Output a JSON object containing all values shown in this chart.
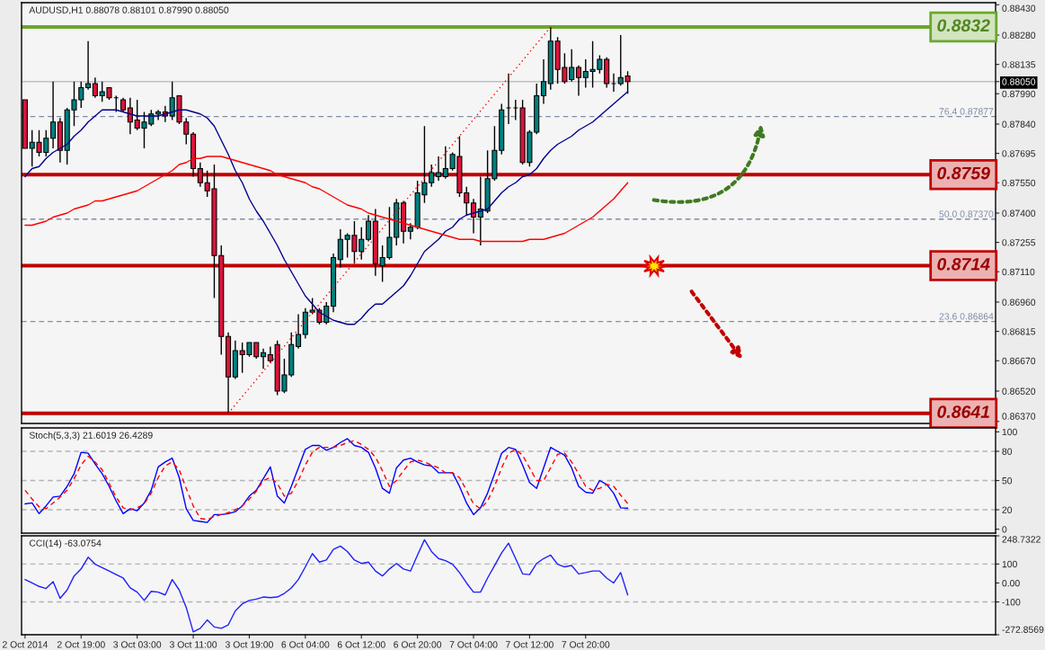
{
  "chart_data": [
    {
      "type": "candlestick",
      "title": "AUDUSD,H1 0.88078 0.88101 0.87990 0.88050",
      "categories": [
        null,
        null,
        null,
        null,
        null,
        null,
        null,
        null,
        null,
        null,
        null,
        null,
        null,
        null,
        null,
        null,
        null,
        null,
        null,
        null,
        null,
        null,
        null,
        null,
        null,
        null,
        null,
        null,
        null,
        null,
        null,
        null,
        null,
        null,
        null,
        null,
        null,
        null,
        null,
        null,
        null,
        null,
        null,
        null,
        null,
        null,
        null,
        null,
        null,
        null,
        null,
        null,
        null,
        null,
        null,
        null,
        null,
        null,
        null,
        null,
        null,
        null,
        null,
        null,
        null,
        null,
        null,
        null,
        null,
        null,
        null,
        null,
        null,
        null,
        null,
        null,
        null,
        null,
        null,
        null,
        null,
        null,
        null,
        null,
        null,
        null,
        null,
        null,
        null,
        null,
        null,
        null,
        null,
        null,
        null,
        null,
        null,
        null,
        null,
        null,
        null,
        null,
        null,
        null,
        null,
        null,
        null,
        null,
        null,
        null,
        null,
        null,
        null,
        null,
        null,
        null,
        null,
        null,
        null,
        null,
        null,
        null,
        null,
        null,
        null,
        null,
        null,
        null,
        null,
        null,
        null,
        null,
        null,
        null,
        null,
        null,
        null,
        null,
        null
      ],
      "ohlc": [
        [
          0.8796,
          0.8796,
          0.8772,
          0.8772
        ],
        [
          0.8772,
          0.8781,
          0.8763,
          0.8775
        ],
        [
          0.8775,
          0.8781,
          0.8768,
          0.877
        ],
        [
          0.877,
          0.8781,
          0.8768,
          0.8777
        ],
        [
          0.8777,
          0.8805,
          0.8772,
          0.8785
        ],
        [
          0.8785,
          0.8787,
          0.8765,
          0.8771
        ],
        [
          0.8771,
          0.8792,
          0.8764,
          0.8791
        ],
        [
          0.8791,
          0.8805,
          0.8783,
          0.8796
        ],
        [
          0.8796,
          0.8805,
          0.8792,
          0.8802
        ],
        [
          0.8802,
          0.8825,
          0.8801,
          0.8804
        ],
        [
          0.8804,
          0.8807,
          0.8797,
          0.8798
        ],
        [
          0.8798,
          0.8805,
          0.8795,
          0.88
        ],
        [
          0.8802,
          0.8802,
          0.8796,
          0.8797
        ],
        [
          0.8797,
          0.8798,
          0.879,
          0.8797
        ],
        [
          0.8796,
          0.8797,
          0.879,
          0.8791
        ],
        [
          0.8792,
          0.8797,
          0.8779,
          0.8785
        ],
        [
          0.8786,
          0.8796,
          0.8781,
          0.8782
        ],
        [
          0.8782,
          0.879,
          0.8772,
          0.8785
        ],
        [
          0.8784,
          0.8791,
          0.8783,
          0.8789
        ],
        [
          0.8789,
          0.8791,
          0.8786,
          0.879
        ],
        [
          0.879,
          0.8793,
          0.8785,
          0.8788
        ],
        [
          0.8788,
          0.8805,
          0.8786,
          0.8797
        ],
        [
          0.8798,
          0.8798,
          0.8784,
          0.8785
        ],
        [
          0.8785,
          0.8787,
          0.8774,
          0.8779
        ],
        [
          0.8779,
          0.878,
          0.8758,
          0.8762
        ],
        [
          0.8762,
          0.8765,
          0.8753,
          0.8755
        ],
        [
          0.8755,
          0.8761,
          0.8748,
          0.8751
        ],
        [
          0.8752,
          0.8764,
          0.8698,
          0.8719
        ],
        [
          0.8719,
          0.8724,
          0.867,
          0.8679
        ],
        [
          0.8679,
          0.8681,
          0.8641,
          0.8659
        ],
        [
          0.8659,
          0.8677,
          0.8658,
          0.8672
        ],
        [
          0.8672,
          0.8676,
          0.8661,
          0.867
        ],
        [
          0.867,
          0.8676,
          0.8669,
          0.8676
        ],
        [
          0.8676,
          0.8676,
          0.8668,
          0.8669
        ],
        [
          0.8669,
          0.8673,
          0.8663,
          0.8671
        ],
        [
          0.867,
          0.8674,
          0.8666,
          0.8667
        ],
        [
          0.8675,
          0.8677,
          0.865,
          0.8652
        ],
        [
          0.8652,
          0.8668,
          0.8651,
          0.866
        ],
        [
          0.866,
          0.8681,
          0.8659,
          0.8675
        ],
        [
          0.8674,
          0.869,
          0.8673,
          0.868
        ],
        [
          0.868,
          0.8693,
          0.8678,
          0.8691
        ],
        [
          0.8691,
          0.8698,
          0.869,
          0.8692
        ],
        [
          0.8692,
          0.8693,
          0.8685,
          0.8686
        ],
        [
          0.8686,
          0.8696,
          0.8685,
          0.8694
        ],
        [
          0.8694,
          0.872,
          0.8691,
          0.8718
        ],
        [
          0.8717,
          0.8732,
          0.8713,
          0.8727
        ],
        [
          0.8727,
          0.873,
          0.8718,
          0.8729
        ],
        [
          0.8729,
          0.8736,
          0.8715,
          0.8721
        ],
        [
          0.8721,
          0.8733,
          0.8717,
          0.8727
        ],
        [
          0.8727,
          0.8739,
          0.8726,
          0.8736
        ],
        [
          0.8736,
          0.8742,
          0.8709,
          0.8715
        ],
        [
          0.8714,
          0.8724,
          0.8706,
          0.8718
        ],
        [
          0.8718,
          0.8743,
          0.8717,
          0.8728
        ],
        [
          0.8728,
          0.8747,
          0.8724,
          0.8745
        ],
        [
          0.8745,
          0.8746,
          0.8725,
          0.8731
        ],
        [
          0.8731,
          0.8735,
          0.8727,
          0.8733
        ],
        [
          0.8733,
          0.8756,
          0.8732,
          0.875
        ],
        [
          0.8749,
          0.8783,
          0.8745,
          0.8755
        ],
        [
          0.8755,
          0.8764,
          0.8753,
          0.876
        ],
        [
          0.8758,
          0.8768,
          0.8756,
          0.876
        ],
        [
          0.8758,
          0.8773,
          0.8757,
          0.8762
        ],
        [
          0.8762,
          0.877,
          0.8761,
          0.8769
        ],
        [
          0.8768,
          0.8778,
          0.8748,
          0.875
        ],
        [
          0.875,
          0.8753,
          0.8739,
          0.8745
        ],
        [
          0.8745,
          0.8747,
          0.873,
          0.8738
        ],
        [
          0.8738,
          0.8758,
          0.8724,
          0.8742
        ],
        [
          0.8741,
          0.8771,
          0.874,
          0.8757
        ],
        [
          0.8757,
          0.8783,
          0.8756,
          0.8771
        ],
        [
          0.8771,
          0.8794,
          0.8769,
          0.8791
        ],
        [
          0.8792,
          0.8809,
          0.8784,
          0.8792
        ],
        [
          0.8792,
          0.8796,
          0.8786,
          0.8792
        ],
        [
          0.8792,
          0.8796,
          0.8764,
          0.8765
        ],
        [
          0.8765,
          0.8781,
          0.8763,
          0.878
        ],
        [
          0.878,
          0.8804,
          0.8779,
          0.8798
        ],
        [
          0.8798,
          0.8816,
          0.8794,
          0.8805
        ],
        [
          0.8804,
          0.8832,
          0.8801,
          0.8825
        ],
        [
          0.8825,
          0.8827,
          0.8804,
          0.8811
        ],
        [
          0.8812,
          0.8819,
          0.8804,
          0.8805
        ],
        [
          0.8806,
          0.8821,
          0.8805,
          0.8812
        ],
        [
          0.8812,
          0.8813,
          0.8798,
          0.8807
        ],
        [
          0.8807,
          0.8816,
          0.8802,
          0.881
        ],
        [
          0.881,
          0.8825,
          0.8802,
          0.8811
        ],
        [
          0.8811,
          0.8818,
          0.8809,
          0.8816
        ],
        [
          0.8816,
          0.8817,
          0.8802,
          0.8804
        ],
        [
          0.8804,
          0.8809,
          0.88,
          0.8804
        ],
        [
          0.8804,
          0.8828,
          0.8803,
          0.8807
        ],
        [
          0.88078,
          0.88101,
          0.8799,
          0.8805
        ],
        null,
        null,
        null,
        null,
        null,
        null,
        null,
        null,
        null,
        null,
        null,
        null,
        null,
        null,
        null,
        null,
        null,
        null,
        null,
        null,
        null,
        null,
        null,
        null,
        null,
        null,
        null,
        null,
        null,
        null,
        null,
        null,
        null,
        null,
        null,
        null,
        null,
        null,
        null,
        null,
        null,
        null,
        null,
        null,
        null,
        null,
        null,
        null,
        null,
        null,
        null,
        null
      ],
      "colors": [
        "#dc143c",
        "#008080",
        "#dc143c",
        "#008080",
        "#008080",
        "#dc143c",
        "#008080",
        "#008080",
        "#008080",
        "#008080",
        "#dc143c",
        "#008080",
        "#dc143c",
        "#000000",
        "#dc143c",
        "#dc143c",
        "#dc143c",
        "#008080",
        "#008080",
        "#008080",
        "#dc143c",
        "#008080",
        "#dc143c",
        "#dc143c",
        "#dc143c",
        "#dc143c",
        "#dc143c",
        "#dc143c",
        "#dc143c",
        "#dc143c",
        "#008080",
        "#dc143c",
        "#008080",
        "#dc143c",
        "#008080",
        "#dc143c",
        "#dc143c",
        "#008080",
        "#008080",
        "#008080",
        "#008080",
        "#008080",
        "#dc143c",
        "#008080",
        "#008080",
        "#008080",
        "#008080",
        "#dc143c",
        "#008080",
        "#008080",
        "#dc143c",
        "#008080",
        "#008080",
        "#008080",
        "#dc143c",
        "#008080",
        "#008080",
        "#008080",
        "#008080",
        "#008080",
        "#008080",
        "#008080",
        "#dc143c",
        "#dc143c",
        "#dc143c",
        "#008080",
        "#008080",
        "#008080",
        "#008080",
        "#000000",
        "#000000",
        "#dc143c",
        "#008080",
        "#008080",
        "#008080",
        "#008080",
        "#dc143c",
        "#dc143c",
        "#008080",
        "#dc143c",
        "#008080",
        "#008080",
        "#008080",
        "#dc143c",
        "#000000",
        "#008080",
        "#dc143c",
        null,
        null,
        null,
        null,
        null,
        null,
        null,
        null,
        null,
        null,
        null,
        null,
        null,
        null,
        null,
        null,
        null,
        null,
        null,
        null,
        null,
        null,
        null,
        null,
        null,
        null,
        null,
        null,
        null,
        null,
        null,
        null,
        null,
        null,
        null,
        null,
        null,
        null,
        null,
        null,
        null,
        null,
        null,
        null,
        null,
        null,
        null,
        null,
        null,
        null,
        null,
        null
      ],
      "series": [
        {
          "type": "line",
          "color": "#00008b",
          "values": [
            0.8758,
            0.8762,
            0.8763,
            0.8767,
            0.877,
            0.8772,
            0.8774,
            0.8778,
            0.8781,
            0.8785,
            0.8788,
            0.8791,
            0.8791,
            0.8791,
            0.879,
            0.8789,
            0.8788,
            0.8788,
            0.8788,
            0.8788,
            0.8789,
            0.879,
            0.8791,
            0.8791,
            0.879,
            0.8789,
            0.8787,
            0.8783,
            0.8776,
            0.8769,
            0.8761,
            0.8755,
            0.8747,
            0.8741,
            0.8736,
            0.873,
            0.8724,
            0.8717,
            0.8711,
            0.8705,
            0.8699,
            0.8695,
            0.8691,
            0.8689,
            0.8687,
            0.8686,
            0.8685,
            0.8685,
            0.8688,
            0.8692,
            0.8695,
            0.8695,
            0.8698,
            0.8701,
            0.8704,
            0.8709,
            0.8715,
            0.8721,
            0.8724,
            0.8727,
            0.8731,
            0.8733,
            0.8737,
            0.8739,
            0.874,
            0.8741,
            0.8742,
            0.8746,
            0.875,
            0.8753,
            0.8755,
            0.8758,
            0.8759,
            0.8762,
            0.8767,
            0.8771,
            0.8774,
            0.8776,
            0.8778,
            0.8781,
            0.8783,
            0.8785,
            0.8788,
            0.8791,
            0.8794,
            0.8797,
            0.88,
            null,
            null,
            null,
            null,
            null,
            null,
            null,
            null,
            null,
            null,
            null,
            null,
            null,
            null,
            null,
            null,
            null,
            null,
            null,
            null,
            null,
            null,
            null,
            null,
            null,
            null,
            null,
            null,
            null,
            null,
            null,
            null,
            null,
            null,
            null,
            null,
            null,
            null,
            null,
            null,
            null,
            null,
            null,
            null,
            null,
            null,
            null,
            null,
            null,
            null,
            null,
            null
          ]
        },
        {
          "type": "line",
          "color": "#ff0000",
          "values": [
            0.8734,
            0.8734,
            0.8735,
            0.8736,
            0.8738,
            0.8739,
            0.874,
            0.8742,
            0.8743,
            0.8744,
            0.8746,
            0.8746,
            0.8747,
            0.8748,
            0.8749,
            0.875,
            0.8751,
            0.8753,
            0.8755,
            0.8757,
            0.8759,
            0.8761,
            0.8764,
            0.8765,
            0.8767,
            0.8767,
            0.8768,
            0.8768,
            0.8768,
            0.8767,
            0.8766,
            0.8765,
            0.8764,
            0.8763,
            0.8762,
            0.8761,
            0.8759,
            0.8758,
            0.8757,
            0.8756,
            0.8755,
            0.8753,
            0.8752,
            0.875,
            0.8748,
            0.8746,
            0.8744,
            0.8743,
            0.8742,
            0.874,
            0.8739,
            0.8738,
            0.8737,
            0.8736,
            0.8735,
            0.8734,
            0.8733,
            0.8732,
            0.8731,
            0.873,
            0.8729,
            0.8728,
            0.8727,
            0.8727,
            0.8727,
            0.8726,
            0.8726,
            0.8726,
            0.8726,
            0.8726,
            0.8726,
            0.8726,
            0.8727,
            0.8727,
            0.8727,
            0.8728,
            0.8729,
            0.873,
            0.8732,
            0.8734,
            0.8736,
            0.8738,
            0.8741,
            0.8744,
            0.8747,
            0.8751,
            0.8755,
            null,
            null,
            null,
            null,
            null,
            null,
            null,
            null,
            null,
            null,
            null,
            null,
            null,
            null,
            null,
            null,
            null,
            null,
            null,
            null,
            null,
            null,
            null,
            null,
            null,
            null,
            null,
            null,
            null,
            null,
            null,
            null,
            null,
            null,
            null,
            null,
            null,
            null,
            null,
            null,
            null,
            null,
            null,
            null,
            null,
            null,
            null,
            null,
            null,
            null,
            null,
            null
          ]
        },
        {
          "type": "line",
          "color": "#ff0000",
          "line_style": "dotted",
          "values": [
            null,
            null,
            null,
            null,
            null,
            null,
            null,
            null,
            null,
            null,
            null,
            null,
            null,
            null,
            null,
            null,
            null,
            null,
            null,
            null,
            null,
            null,
            null,
            null,
            null,
            null,
            null,
            null,
            null,
            0.8641,
            null,
            null,
            null,
            null,
            null,
            null,
            null,
            null,
            null,
            null,
            null,
            null,
            null,
            null,
            null,
            null,
            null,
            null,
            null,
            null,
            null,
            null,
            null,
            null,
            null,
            null,
            null,
            null,
            null,
            null,
            null,
            null,
            null,
            null,
            null,
            null,
            null,
            null,
            null,
            null,
            null,
            null,
            null,
            null,
            null,
            0.8832,
            null,
            null,
            null,
            null,
            null,
            null,
            null,
            null,
            null,
            null,
            null,
            null,
            null,
            null,
            null,
            null,
            null,
            null,
            null,
            null,
            null,
            null,
            null,
            null,
            null,
            null,
            null,
            null,
            null,
            null,
            null,
            null,
            null,
            null,
            null,
            null,
            null,
            null,
            null,
            null,
            null,
            null,
            null,
            null,
            null,
            null,
            null,
            null,
            null,
            null,
            null,
            null,
            null,
            null,
            null,
            null,
            null,
            null,
            null,
            null,
            null,
            null,
            null
          ]
        }
      ],
      "ref_lines": [
        {
          "axis": "y",
          "value": 0.8805,
          "color": "#c0c0c0",
          "line_style": "solid"
        },
        {
          "axis": "y",
          "value": 0.87877,
          "label": "76.4 0.87877",
          "color": "#7f8ea6",
          "line_style": "dashed"
        },
        {
          "axis": "y",
          "value": 0.8737,
          "label": "50.0 0.87370",
          "color": "#7f8ea6",
          "line_style": "dashed"
        },
        {
          "axis": "y",
          "value": 0.86864,
          "label": "23.6 0.86864",
          "color": "#7f8ea6",
          "line_style": "dashed"
        },
        {
          "axis": "y",
          "value": 0.8832,
          "label": "0.8832",
          "color": "#6aa82c",
          "line_style": "solid"
        },
        {
          "axis": "y",
          "value": 0.8759,
          "label": "0.8759",
          "color": "#c00000",
          "line_style": "solid"
        },
        {
          "axis": "y",
          "value": 0.8714,
          "label": "0.8714",
          "color": "#c00000",
          "line_style": "solid"
        },
        {
          "axis": "y",
          "value": 0.8641,
          "label": "0.8641",
          "color": "#c00000",
          "line_style": "solid"
        }
      ],
      "ylim": [
        0.8636,
        0.8844
      ],
      "yticks": [
        {
          "value": 0.8843,
          "label": "0.88430"
        },
        {
          "value": 0.8828,
          "label": "0.88280"
        },
        {
          "value": 0.88135,
          "label": "0.88135"
        },
        {
          "value": 0.8805,
          "label": "0.88050"
        },
        {
          "value": 0.8799,
          "label": "0.87990"
        },
        {
          "value": 0.8784,
          "label": "0.87840"
        },
        {
          "value": 0.87695,
          "label": "0.87695"
        },
        {
          "value": 0.8755,
          "label": "0.87550"
        },
        {
          "value": 0.874,
          "label": "0.87400"
        },
        {
          "value": 0.87255,
          "label": "0.87255"
        },
        {
          "value": 0.8711,
          "label": "0.87110"
        },
        {
          "value": 0.8696,
          "label": "0.86960"
        },
        {
          "value": 0.86815,
          "label": "0.86815"
        },
        {
          "value": 0.8667,
          "label": "0.86670"
        },
        {
          "value": 0.8652,
          "label": "0.86520"
        },
        {
          "value": 0.8637,
          "label": "0.86370"
        }
      ],
      "tick_labels": "y"
    },
    {
      "type": "line",
      "title": "Stoch(5,3,3) 21.6019 26.4289",
      "categories": [
        null,
        null,
        null,
        null,
        null,
        null,
        null,
        null,
        null,
        null,
        null,
        null,
        null,
        null,
        null,
        null,
        null,
        null,
        null,
        null,
        null,
        null,
        null,
        null,
        null,
        null,
        null,
        null,
        null,
        null,
        null,
        null,
        null,
        null,
        null,
        null,
        null,
        null,
        null,
        null,
        null,
        null,
        null,
        null,
        null,
        null,
        null,
        null,
        null,
        null,
        null,
        null,
        null,
        null,
        null,
        null,
        null,
        null,
        null,
        null,
        null,
        null,
        null,
        null,
        null,
        null,
        null,
        null,
        null,
        null,
        null,
        null,
        null,
        null,
        null,
        null,
        null,
        null,
        null,
        null,
        null,
        null,
        null,
        null,
        null,
        null,
        null,
        null,
        null,
        null,
        null,
        null,
        null,
        null,
        null,
        null,
        null,
        null,
        null,
        null,
        null,
        null,
        null,
        null,
        null,
        null,
        null,
        null,
        null,
        null,
        null,
        null,
        null,
        null,
        null,
        null,
        null,
        null,
        null,
        null,
        null,
        null,
        null,
        null,
        null,
        null,
        null,
        null,
        null,
        null,
        null,
        null,
        null,
        null,
        null,
        null,
        null,
        null,
        null
      ],
      "series": [
        {
          "color": "#0000ff",
          "values": [
            26,
            27,
            16,
            24,
            33,
            34,
            44,
            57,
            79,
            78,
            67,
            57,
            44,
            29,
            16,
            21,
            19,
            27,
            40,
            64,
            69,
            73,
            53,
            21,
            9,
            8,
            7,
            15,
            15,
            16,
            18,
            24,
            34,
            40,
            52,
            64,
            34,
            27,
            44,
            63,
            82,
            86,
            86,
            81,
            84,
            89,
            93,
            86,
            84,
            79,
            63,
            42,
            37,
            63,
            71,
            73,
            69,
            66,
            65,
            58,
            58,
            58,
            44,
            27,
            15,
            22,
            37,
            57,
            78,
            84,
            82,
            66,
            48,
            42,
            63,
            84,
            80,
            76,
            63,
            44,
            38,
            37,
            50,
            46,
            37,
            22,
            21.6019,
            null,
            null,
            null,
            null,
            null,
            null,
            null,
            null,
            null,
            null,
            null,
            null,
            null,
            null,
            null,
            null,
            null,
            null,
            null,
            null,
            null,
            null,
            null,
            null,
            null,
            null,
            null,
            null,
            null,
            null,
            null,
            null,
            null,
            null,
            null,
            null,
            null,
            null,
            null,
            null,
            null,
            null,
            null,
            null,
            null,
            null,
            null,
            null,
            null,
            null,
            null,
            null
          ]
        },
        {
          "color": "#ff0000",
          "line_style": "dashed",
          "values": [
            40,
            31,
            23,
            21,
            27,
            33,
            40,
            52,
            66,
            75,
            69,
            61,
            47,
            33,
            22,
            20,
            22,
            26,
            37,
            53,
            65,
            69,
            61,
            42,
            24,
            11,
            10,
            13,
            15,
            17,
            20,
            24,
            31,
            39,
            50,
            53,
            47,
            34,
            37,
            50,
            66,
            79,
            84,
            84,
            84,
            86,
            89,
            91,
            87,
            82,
            74,
            60,
            44,
            50,
            60,
            69,
            71,
            69,
            66,
            63,
            58,
            58,
            53,
            40,
            26,
            21,
            29,
            44,
            63,
            78,
            82,
            76,
            63,
            50,
            50,
            63,
            77,
            78,
            69,
            57,
            44,
            40,
            42,
            46,
            44,
            35,
            26.4289,
            null,
            null,
            null,
            null,
            null,
            null,
            null,
            null,
            null,
            null,
            null,
            null,
            null,
            null,
            null,
            null,
            null,
            null,
            null,
            null,
            null,
            null,
            null,
            null,
            null,
            null,
            null,
            null,
            null,
            null,
            null,
            null,
            null,
            null,
            null,
            null,
            null,
            null,
            null,
            null,
            null,
            null,
            null,
            null,
            null,
            null,
            null,
            null,
            null,
            null,
            null,
            null
          ]
        }
      ],
      "ref_lines": [
        {
          "axis": "y",
          "value": 80,
          "color": "#b4b4b4",
          "line_style": "dashed"
        },
        {
          "axis": "y",
          "value": 50,
          "color": "#b4b4b4",
          "line_style": "dashed"
        },
        {
          "axis": "y",
          "value": 20,
          "color": "#b4b4b4",
          "line_style": "dashed"
        }
      ],
      "ylim": [
        -4,
        104
      ],
      "yticks": [
        0,
        20,
        50,
        80,
        100
      ],
      "tick_labels": "y"
    },
    {
      "type": "line",
      "title": "CCI(14) -63.0754",
      "categories": [
        "2 Oct 2014",
        null,
        null,
        null,
        null,
        null,
        null,
        null,
        "2 Oct 19:00",
        null,
        null,
        null,
        null,
        null,
        null,
        null,
        "3 Oct 03:00",
        null,
        null,
        null,
        null,
        null,
        null,
        null,
        "3 Oct 11:00",
        null,
        null,
        null,
        null,
        null,
        null,
        null,
        "3 Oct 19:00",
        null,
        null,
        null,
        null,
        null,
        null,
        null,
        "6 Oct 04:00",
        null,
        null,
        null,
        null,
        null,
        null,
        null,
        "6 Oct 12:00",
        null,
        null,
        null,
        null,
        null,
        null,
        null,
        "6 Oct 20:00",
        null,
        null,
        null,
        null,
        null,
        null,
        null,
        "7 Oct 04:00",
        null,
        null,
        null,
        null,
        null,
        null,
        null,
        "7 Oct 12:00",
        null,
        null,
        null,
        null,
        null,
        null,
        null,
        "7 Oct 20:00",
        null,
        null,
        null,
        null,
        null,
        null,
        null,
        null,
        null,
        null,
        null,
        null,
        null,
        null,
        null,
        null,
        null,
        null,
        null,
        null,
        null,
        null,
        null,
        null,
        null,
        null,
        null,
        null,
        null,
        null,
        null,
        null,
        null,
        null,
        null,
        null,
        null,
        null,
        null,
        null,
        null,
        null,
        null,
        null,
        null,
        null,
        null,
        null,
        null,
        null,
        null,
        null,
        null,
        null,
        null,
        null,
        null,
        null
      ],
      "series": [
        {
          "color": "#1f1fff",
          "values": [
            18,
            0,
            -18,
            -29,
            7,
            -81,
            -37,
            37,
            74,
            136,
            99,
            81,
            63,
            44,
            26,
            -26,
            -48,
            -92,
            -44,
            -48,
            -63,
            18,
            -37,
            -129,
            -258,
            -239,
            -195,
            -232,
            -239,
            -221,
            -147,
            -110,
            -92,
            -85,
            -74,
            -77,
            -74,
            -55,
            -26,
            18,
            85,
            155,
            110,
            121,
            177,
            195,
            166,
            121,
            103,
            110,
            63,
            37,
            74,
            103,
            74,
            63,
            147,
            228,
            166,
            129,
            118,
            99,
            55,
            0,
            -48,
            -48,
            26,
            92,
            158,
            210,
            129,
            48,
            44,
            103,
            129,
            147,
            99,
            85,
            92,
            48,
            55,
            63,
            63,
            26,
            0,
            55,
            -63.0754,
            null,
            null,
            null,
            null,
            null,
            null,
            null,
            null,
            null,
            null,
            null,
            null,
            null,
            null,
            null,
            null,
            null,
            null,
            null,
            null,
            null,
            null,
            null,
            null,
            null,
            null,
            null,
            null,
            null,
            null,
            null,
            null,
            null,
            null,
            null,
            null,
            null,
            null,
            null,
            null,
            null,
            null,
            null,
            null,
            null,
            null,
            null,
            null,
            null,
            null,
            null,
            null
          ]
        }
      ],
      "ref_lines": [
        {
          "axis": "y",
          "value": 100,
          "color": "#b4b4b4",
          "line_style": "dashed"
        },
        {
          "axis": "y",
          "value": -100,
          "color": "#b4b4b4",
          "line_style": "dashed"
        }
      ],
      "ylim": [
        -272.8569,
        248.7322
      ],
      "yticks": [
        -272.8569,
        -100,
        {
          "value": 0,
          "label": "0.00"
        },
        100,
        248.7322
      ]
    }
  ]
}
